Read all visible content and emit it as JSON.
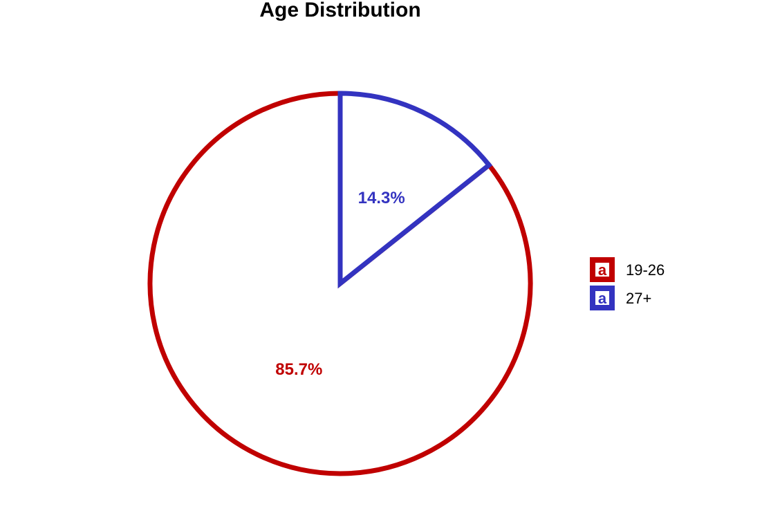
{
  "chart_data": {
    "type": "pie",
    "title": "Age Distribution",
    "categories": [
      "19-26",
      "27+"
    ],
    "values": [
      85.7,
      14.3
    ],
    "labels": [
      "85.7%",
      "14.3%"
    ],
    "colors": [
      "#c00000",
      "#3333c0"
    ],
    "legend": {
      "position": "right",
      "key_letter": "a"
    }
  }
}
